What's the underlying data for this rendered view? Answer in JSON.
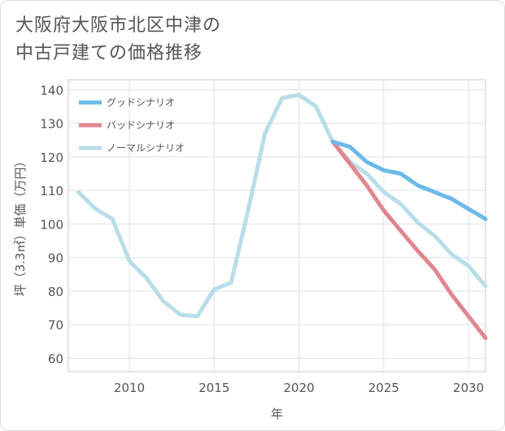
{
  "title_lines": [
    "大阪府大阪市北区中津の",
    "中古戸建ての価格推移"
  ],
  "chart_data": {
    "type": "line",
    "xlabel": "年",
    "ylabel": "坪（3.3㎡）単価（万円）",
    "xlim": [
      2006.4,
      2031
    ],
    "ylim": [
      56,
      143
    ],
    "x_ticks": [
      2010,
      2015,
      2020,
      2025,
      2030
    ],
    "y_ticks": [
      60,
      70,
      80,
      90,
      100,
      110,
      120,
      130,
      140
    ],
    "grid": true,
    "legend_position": "top-left",
    "series": [
      {
        "name": "グッドシナリオ",
        "color": "#6cb9ea",
        "x": [
          2022,
          2023,
          2024,
          2025,
          2026,
          2027,
          2028,
          2029,
          2030,
          2031
        ],
        "y": [
          124.5,
          123,
          118.5,
          116,
          115,
          111.5,
          109.5,
          107.5,
          104.5,
          101.5
        ]
      },
      {
        "name": "バッドシナリオ",
        "color": "#e0868d",
        "x": [
          2022,
          2023,
          2024,
          2025,
          2026,
          2027,
          2028,
          2029,
          2030,
          2031
        ],
        "y": [
          124.5,
          118,
          111.5,
          104,
          98,
          92,
          86.5,
          79,
          72.5,
          66
        ]
      },
      {
        "name": "ノーマルシナリオ",
        "color": "#b9dde9",
        "x": [
          2007,
          2008,
          2009,
          2010,
          2011,
          2012,
          2013,
          2014,
          2015,
          2016,
          2017,
          2018,
          2019,
          2020,
          2021,
          2022,
          2023,
          2024,
          2025,
          2026,
          2027,
          2028,
          2029,
          2030,
          2031
        ],
        "y": [
          109.5,
          104.5,
          101.5,
          89,
          84,
          77,
          73,
          72.5,
          80.5,
          82.5,
          104,
          127,
          137.5,
          138.5,
          135,
          124.5,
          118.5,
          115,
          109.5,
          106,
          100.5,
          96.5,
          91,
          87.5,
          81.5
        ]
      }
    ]
  }
}
